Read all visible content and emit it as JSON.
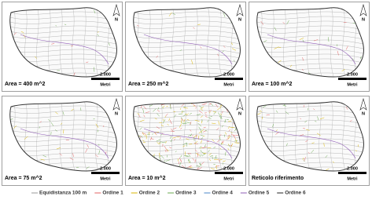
{
  "panels": [
    {
      "label": "Area = 400 m^2",
      "scale_value": "2.000",
      "scale_unit": "Metri",
      "north": "N"
    },
    {
      "label": "Area = 250 m^2",
      "scale_value": "2.000",
      "scale_unit": "Metri",
      "north": "N"
    },
    {
      "label": "Area = 100 m^2",
      "scale_value": "2.000",
      "scale_unit": "Metri",
      "north": "N"
    },
    {
      "label": "Area = 75 m^2",
      "scale_value": "2.000",
      "scale_unit": "Metri",
      "north": "N"
    },
    {
      "label": "Area = 10 m^2",
      "scale_value": "2.000",
      "scale_unit": "Metri",
      "north": "N"
    },
    {
      "label": "Reticolo riferimento",
      "scale_value": "2.000",
      "scale_unit": "Metri",
      "north": "N"
    }
  ],
  "legend": [
    {
      "name": "Equidistanza 100 m",
      "color": "#9a9a9a"
    },
    {
      "name": "Ordine 1",
      "color": "#e06060"
    },
    {
      "name": "Ordine 2",
      "color": "#d9b400"
    },
    {
      "name": "Ordine 3",
      "color": "#6aa84f"
    },
    {
      "name": "Ordine 4",
      "color": "#4a86c8"
    },
    {
      "name": "Ordine 5",
      "color": "#8e5bb5"
    },
    {
      "name": "Ordine 6",
      "color": "#222222"
    }
  ]
}
